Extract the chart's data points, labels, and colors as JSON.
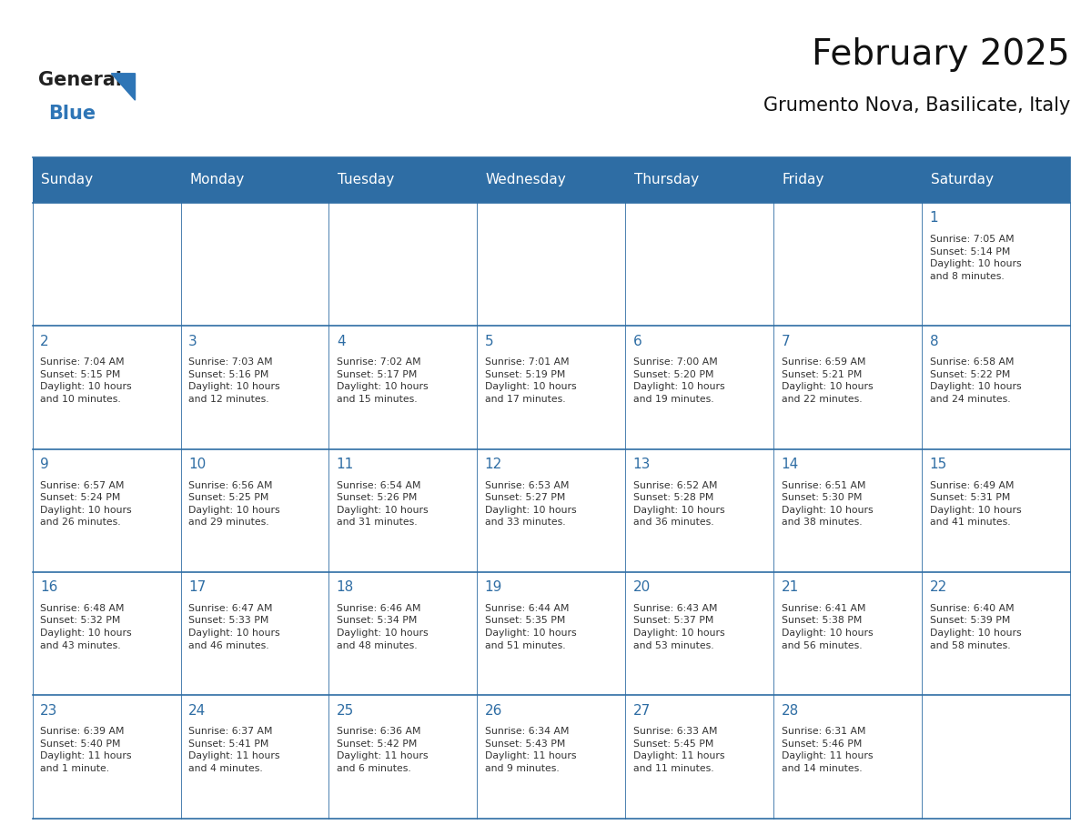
{
  "title": "February 2025",
  "subtitle": "Grumento Nova, Basilicate, Italy",
  "days_of_week": [
    "Sunday",
    "Monday",
    "Tuesday",
    "Wednesday",
    "Thursday",
    "Friday",
    "Saturday"
  ],
  "header_bg": "#2e6da4",
  "header_text": "#ffffff",
  "border_color": "#2e6da4",
  "day_number_color": "#2e6da4",
  "text_color": "#333333",
  "logo_general_color": "#222222",
  "logo_blue_color": "#2e75b6",
  "weeks": [
    [
      {
        "day": null,
        "text": ""
      },
      {
        "day": null,
        "text": ""
      },
      {
        "day": null,
        "text": ""
      },
      {
        "day": null,
        "text": ""
      },
      {
        "day": null,
        "text": ""
      },
      {
        "day": null,
        "text": ""
      },
      {
        "day": 1,
        "text": "Sunrise: 7:05 AM\nSunset: 5:14 PM\nDaylight: 10 hours\nand 8 minutes."
      }
    ],
    [
      {
        "day": 2,
        "text": "Sunrise: 7:04 AM\nSunset: 5:15 PM\nDaylight: 10 hours\nand 10 minutes."
      },
      {
        "day": 3,
        "text": "Sunrise: 7:03 AM\nSunset: 5:16 PM\nDaylight: 10 hours\nand 12 minutes."
      },
      {
        "day": 4,
        "text": "Sunrise: 7:02 AM\nSunset: 5:17 PM\nDaylight: 10 hours\nand 15 minutes."
      },
      {
        "day": 5,
        "text": "Sunrise: 7:01 AM\nSunset: 5:19 PM\nDaylight: 10 hours\nand 17 minutes."
      },
      {
        "day": 6,
        "text": "Sunrise: 7:00 AM\nSunset: 5:20 PM\nDaylight: 10 hours\nand 19 minutes."
      },
      {
        "day": 7,
        "text": "Sunrise: 6:59 AM\nSunset: 5:21 PM\nDaylight: 10 hours\nand 22 minutes."
      },
      {
        "day": 8,
        "text": "Sunrise: 6:58 AM\nSunset: 5:22 PM\nDaylight: 10 hours\nand 24 minutes."
      }
    ],
    [
      {
        "day": 9,
        "text": "Sunrise: 6:57 AM\nSunset: 5:24 PM\nDaylight: 10 hours\nand 26 minutes."
      },
      {
        "day": 10,
        "text": "Sunrise: 6:56 AM\nSunset: 5:25 PM\nDaylight: 10 hours\nand 29 minutes."
      },
      {
        "day": 11,
        "text": "Sunrise: 6:54 AM\nSunset: 5:26 PM\nDaylight: 10 hours\nand 31 minutes."
      },
      {
        "day": 12,
        "text": "Sunrise: 6:53 AM\nSunset: 5:27 PM\nDaylight: 10 hours\nand 33 minutes."
      },
      {
        "day": 13,
        "text": "Sunrise: 6:52 AM\nSunset: 5:28 PM\nDaylight: 10 hours\nand 36 minutes."
      },
      {
        "day": 14,
        "text": "Sunrise: 6:51 AM\nSunset: 5:30 PM\nDaylight: 10 hours\nand 38 minutes."
      },
      {
        "day": 15,
        "text": "Sunrise: 6:49 AM\nSunset: 5:31 PM\nDaylight: 10 hours\nand 41 minutes."
      }
    ],
    [
      {
        "day": 16,
        "text": "Sunrise: 6:48 AM\nSunset: 5:32 PM\nDaylight: 10 hours\nand 43 minutes."
      },
      {
        "day": 17,
        "text": "Sunrise: 6:47 AM\nSunset: 5:33 PM\nDaylight: 10 hours\nand 46 minutes."
      },
      {
        "day": 18,
        "text": "Sunrise: 6:46 AM\nSunset: 5:34 PM\nDaylight: 10 hours\nand 48 minutes."
      },
      {
        "day": 19,
        "text": "Sunrise: 6:44 AM\nSunset: 5:35 PM\nDaylight: 10 hours\nand 51 minutes."
      },
      {
        "day": 20,
        "text": "Sunrise: 6:43 AM\nSunset: 5:37 PM\nDaylight: 10 hours\nand 53 minutes."
      },
      {
        "day": 21,
        "text": "Sunrise: 6:41 AM\nSunset: 5:38 PM\nDaylight: 10 hours\nand 56 minutes."
      },
      {
        "day": 22,
        "text": "Sunrise: 6:40 AM\nSunset: 5:39 PM\nDaylight: 10 hours\nand 58 minutes."
      }
    ],
    [
      {
        "day": 23,
        "text": "Sunrise: 6:39 AM\nSunset: 5:40 PM\nDaylight: 11 hours\nand 1 minute."
      },
      {
        "day": 24,
        "text": "Sunrise: 6:37 AM\nSunset: 5:41 PM\nDaylight: 11 hours\nand 4 minutes."
      },
      {
        "day": 25,
        "text": "Sunrise: 6:36 AM\nSunset: 5:42 PM\nDaylight: 11 hours\nand 6 minutes."
      },
      {
        "day": 26,
        "text": "Sunrise: 6:34 AM\nSunset: 5:43 PM\nDaylight: 11 hours\nand 9 minutes."
      },
      {
        "day": 27,
        "text": "Sunrise: 6:33 AM\nSunset: 5:45 PM\nDaylight: 11 hours\nand 11 minutes."
      },
      {
        "day": 28,
        "text": "Sunrise: 6:31 AM\nSunset: 5:46 PM\nDaylight: 11 hours\nand 14 minutes."
      },
      {
        "day": null,
        "text": ""
      }
    ]
  ]
}
